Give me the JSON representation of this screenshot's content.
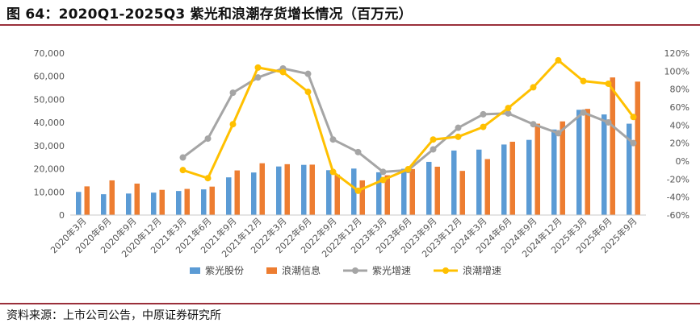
{
  "header": {
    "title": "图 64：2020Q1-2025Q3 紫光和浪潮存货增长情况（百万元）"
  },
  "footer": {
    "source": "资料来源：上市公司公告，中原证券研究所"
  },
  "colors": {
    "ziguang_stock": "#5b9bd5",
    "langchao_stock": "#ed7d31",
    "ziguang_growth": "#a5a5a5",
    "langchao_growth": "#ffc000",
    "rule": "#9a2f3a"
  },
  "chart_data": {
    "type": "bar",
    "categories": [
      "2020年3月",
      "2020年6月",
      "2020年9月",
      "2020年12月",
      "2021年3月",
      "2021年6月",
      "2021年9月",
      "2021年12月",
      "2022年3月",
      "2022年6月",
      "2022年9月",
      "2022年12月",
      "2023年3月",
      "2023年6月",
      "2023年9月",
      "2023年12月",
      "2024年3月",
      "2024年6月",
      "2024年9月",
      "2024年12月",
      "2025年3月",
      "2025年6月",
      "2025年9月"
    ],
    "y_left": {
      "ticks": [
        "0",
        "10,000",
        "20,000",
        "30,000",
        "40,000",
        "50,000",
        "60,000",
        "70,000"
      ],
      "ylim": [
        0,
        70000
      ]
    },
    "y_right": {
      "ticks": [
        "-60%",
        "-40%",
        "-20%",
        "0%",
        "20%",
        "40%",
        "60%",
        "80%",
        "100%",
        "120%"
      ],
      "ylim": [
        -60,
        120
      ]
    },
    "series": [
      {
        "name": "紫光股份",
        "kind": "bar",
        "axis": "left",
        "values": [
          10000,
          9000,
          9300,
          9700,
          10400,
          11100,
          16300,
          18400,
          21000,
          21700,
          19400,
          20100,
          18500,
          20000,
          23000,
          27900,
          28300,
          30500,
          32500,
          37000,
          45500,
          43500,
          39500
        ]
      },
      {
        "name": "浪潮信息",
        "kind": "bar",
        "axis": "left",
        "values": [
          12400,
          15000,
          13600,
          10900,
          11300,
          12300,
          19300,
          22400,
          22000,
          21800,
          17500,
          15000,
          17200,
          19900,
          20900,
          19100,
          24200,
          31700,
          39500,
          40500,
          45900,
          59500,
          57700
        ]
      },
      {
        "name": "紫光增速",
        "kind": "line",
        "axis": "right",
        "values": [
          null,
          null,
          null,
          null,
          4,
          25,
          76,
          93,
          103,
          97,
          24,
          10,
          -12,
          -10,
          13,
          37,
          52,
          53,
          41,
          31,
          54,
          43,
          20
        ]
      },
      {
        "name": "浪潮增速",
        "kind": "line",
        "axis": "right",
        "values": [
          null,
          null,
          null,
          null,
          -10,
          -19,
          41,
          104,
          99,
          77,
          -12,
          -33,
          -21,
          -9,
          24,
          27,
          38,
          59,
          82,
          112,
          89,
          86,
          49
        ]
      }
    ],
    "legend_position": "bottom",
    "grid": false
  }
}
